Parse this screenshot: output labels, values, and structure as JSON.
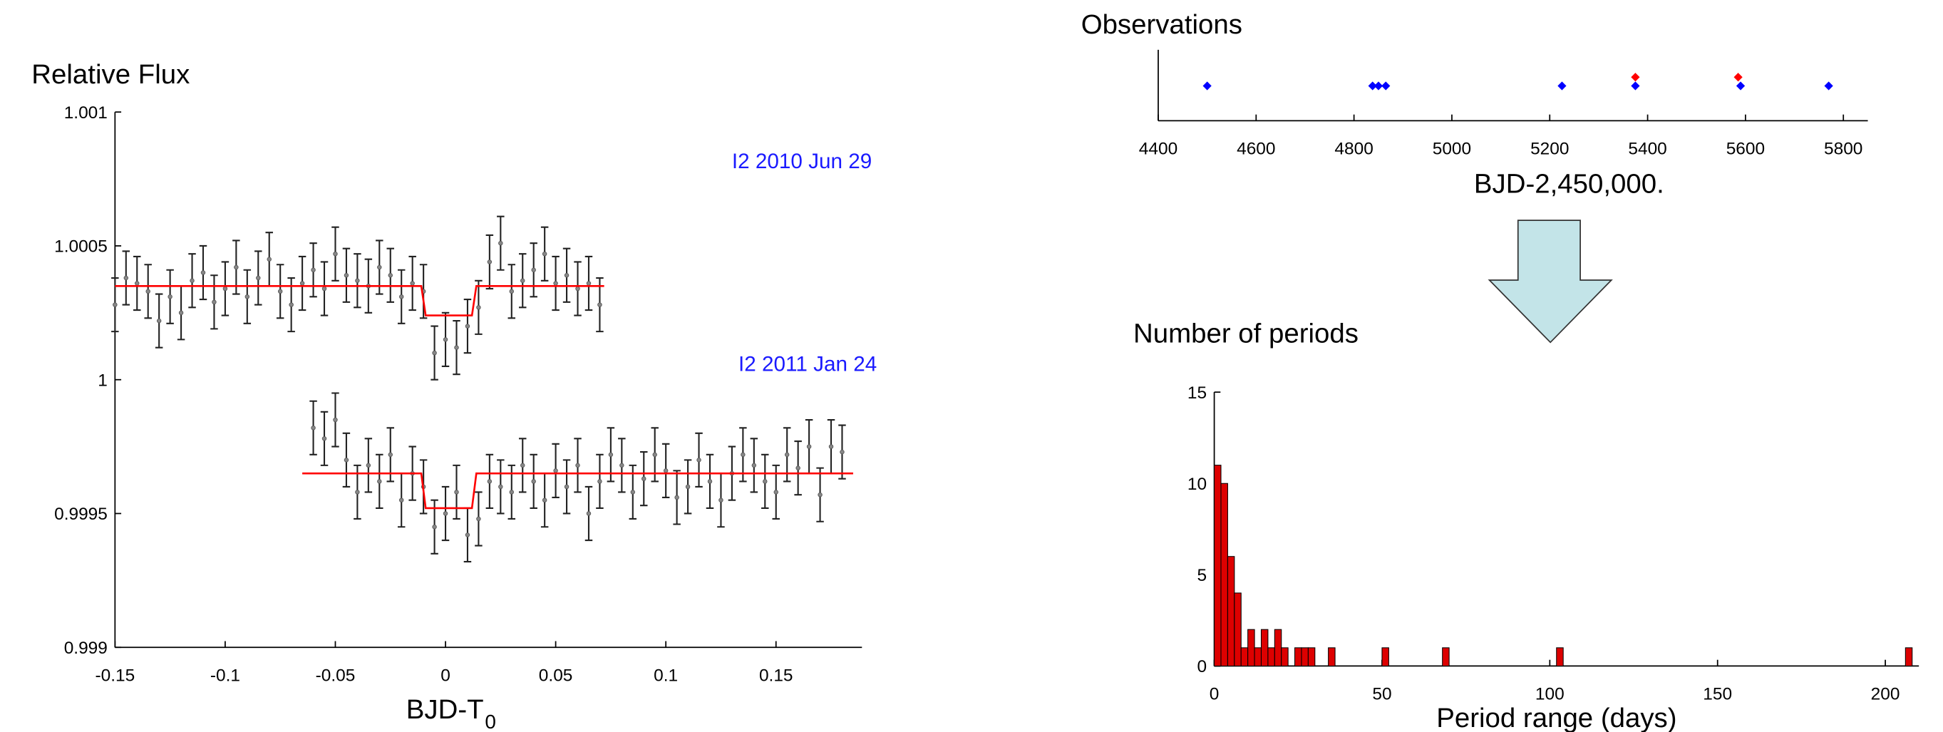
{
  "chart_data": [
    {
      "type": "scatter",
      "title": "Relative Flux",
      "x_label": {
        "text": "BJD-T",
        "subscript": "0"
      },
      "xlim": [
        -0.15,
        0.189
      ],
      "xticks": [
        -0.15,
        -0.1,
        -0.05,
        0,
        0.05,
        0.1,
        0.15
      ],
      "ylim": [
        0.999,
        1.001
      ],
      "yticks": [
        0.999,
        0.9995,
        1,
        1.0005,
        1.001
      ],
      "name_color": "#1a1aff",
      "series": [
        {
          "name": "I2 2010 Jun 29",
          "color": "#222222",
          "error": 0.0001,
          "x": [
            -0.15,
            -0.145,
            -0.14,
            -0.135,
            -0.13,
            -0.125,
            -0.12,
            -0.115,
            -0.11,
            -0.105,
            -0.1,
            -0.095,
            -0.09,
            -0.085,
            -0.08,
            -0.075,
            -0.07,
            -0.065,
            -0.06,
            -0.055,
            -0.05,
            -0.045,
            -0.04,
            -0.035,
            -0.03,
            -0.025,
            -0.02,
            -0.015,
            -0.01,
            -0.005,
            0,
            0.005,
            0.01,
            0.015,
            0.02,
            0.025,
            0.03,
            0.035,
            0.04,
            0.045,
            0.05,
            0.055,
            0.06,
            0.065,
            0.07
          ],
          "values": [
            1.00028,
            1.00038,
            1.00036,
            1.00033,
            1.00022,
            1.00031,
            1.00025,
            1.00037,
            1.0004,
            1.00029,
            1.00034,
            1.00042,
            1.00031,
            1.00038,
            1.00045,
            1.00033,
            1.00028,
            1.00036,
            1.00041,
            1.00034,
            1.00047,
            1.00039,
            1.00037,
            1.00035,
            1.00042,
            1.00039,
            1.00031,
            1.00036,
            1.00033,
            1.0001,
            1.00015,
            1.00012,
            1.0002,
            1.00027,
            1.00044,
            1.00051,
            1.00033,
            1.00037,
            1.00041,
            1.00047,
            1.00036,
            1.00039,
            1.00034,
            1.00036,
            1.00028
          ]
        },
        {
          "name": "I2 2011 Jan 24",
          "color": "#222222",
          "error": 0.0001,
          "x": [
            -0.06,
            -0.055,
            -0.05,
            -0.045,
            -0.04,
            -0.035,
            -0.03,
            -0.025,
            -0.02,
            -0.015,
            -0.01,
            -0.005,
            0,
            0.005,
            0.01,
            0.015,
            0.02,
            0.025,
            0.03,
            0.035,
            0.04,
            0.045,
            0.05,
            0.055,
            0.06,
            0.065,
            0.07,
            0.075,
            0.08,
            0.085,
            0.09,
            0.095,
            0.1,
            0.105,
            0.11,
            0.115,
            0.12,
            0.125,
            0.13,
            0.135,
            0.14,
            0.145,
            0.15,
            0.155,
            0.16,
            0.165,
            0.17,
            0.175,
            0.18
          ],
          "values": [
            0.99982,
            0.99978,
            0.99985,
            0.9997,
            0.99958,
            0.99968,
            0.99962,
            0.99972,
            0.99955,
            0.99965,
            0.9996,
            0.99945,
            0.9995,
            0.99958,
            0.99942,
            0.99948,
            0.99962,
            0.9996,
            0.99958,
            0.99968,
            0.99962,
            0.99955,
            0.99966,
            0.9996,
            0.99968,
            0.9995,
            0.99962,
            0.99972,
            0.99968,
            0.99958,
            0.99963,
            0.99972,
            0.99966,
            0.99956,
            0.9996,
            0.9997,
            0.99962,
            0.99955,
            0.99965,
            0.99972,
            0.99968,
            0.99962,
            0.99958,
            0.99972,
            0.99967,
            0.99975,
            0.99957,
            0.99975,
            0.99973
          ]
        }
      ],
      "models": [
        {
          "color": "#ff0000",
          "x": [
            -0.15,
            -0.011,
            -0.009,
            0.012,
            0.014,
            0.072
          ],
          "values": [
            1.00035,
            1.00035,
            1.00024,
            1.00024,
            1.00035,
            1.00035
          ]
        },
        {
          "color": "#ff0000",
          "x": [
            -0.065,
            -0.011,
            -0.009,
            0.012,
            0.014,
            0.185
          ],
          "values": [
            0.99965,
            0.99965,
            0.99952,
            0.99952,
            0.99965,
            0.99965
          ]
        }
      ]
    },
    {
      "type": "strip",
      "title": "Observations",
      "x_label": {
        "text": "BJD-2,450,000."
      },
      "xlim": [
        4400,
        5850
      ],
      "xticks": [
        4400,
        4600,
        4800,
        5000,
        5200,
        5400,
        5600,
        5800
      ],
      "series": [
        {
          "color": "#0000ff",
          "x": [
            4500,
            4838,
            4850,
            4865,
            5225,
            5375,
            5590,
            5770
          ]
        },
        {
          "color": "#ff0000",
          "x": [
            5375,
            5585
          ]
        }
      ]
    },
    {
      "type": "histogram",
      "title": "Number of periods",
      "x_label": {
        "text": "Period range (days)"
      },
      "xlim": [
        0,
        210
      ],
      "xticks": [
        0,
        50,
        100,
        150,
        200
      ],
      "ylim": [
        0,
        15
      ],
      "yticks": [
        0,
        5,
        10,
        15
      ],
      "color": "#dd0000",
      "bins": [
        0,
        2,
        4,
        6,
        8,
        10,
        12,
        14,
        16,
        18,
        20,
        22,
        24,
        26,
        28,
        30,
        34,
        36,
        50,
        52,
        68,
        70,
        102,
        104,
        206,
        208
      ],
      "counts": [
        11,
        10,
        6,
        4,
        1,
        2,
        1,
        2,
        1,
        2,
        1,
        0,
        1,
        1,
        1,
        0,
        1,
        0,
        1,
        0,
        1,
        0,
        1,
        0,
        1
      ]
    }
  ]
}
